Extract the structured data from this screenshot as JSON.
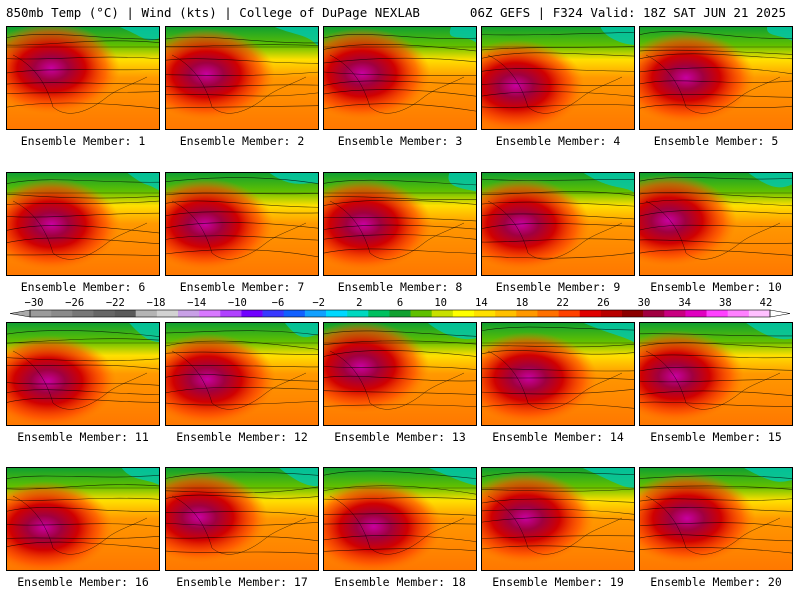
{
  "header": {
    "left": "850mb Temp (°C) | Wind (kts) | College of DuPage NEXLAB",
    "right": "06Z GEFS | F324 Valid: 18Z SAT JUN 21 2025"
  },
  "member_caption_prefix": "Ensemble Member:",
  "members": [
    {
      "number": 1
    },
    {
      "number": 2
    },
    {
      "number": 3
    },
    {
      "number": 4
    },
    {
      "number": 5
    },
    {
      "number": 6
    },
    {
      "number": 7
    },
    {
      "number": 8
    },
    {
      "number": 9
    },
    {
      "number": 10
    },
    {
      "number": 11
    },
    {
      "number": 12
    },
    {
      "number": 13
    },
    {
      "number": 14
    },
    {
      "number": 15
    },
    {
      "number": 16
    },
    {
      "number": 17
    },
    {
      "number": 18
    },
    {
      "number": 19
    },
    {
      "number": 20
    }
  ],
  "colorbar": {
    "tick_labels": [
      "−30",
      "−26",
      "−22",
      "−18",
      "−14",
      "−10",
      "−6",
      "−2",
      "2",
      "6",
      "10",
      "14",
      "18",
      "22",
      "26",
      "30",
      "34",
      "38",
      "42"
    ],
    "colors": [
      "#9a9a9a",
      "#8a8a8a",
      "#777777",
      "#666666",
      "#5a5a5a",
      "#b4b4b4",
      "#d2d2d2",
      "#c8a0e6",
      "#d878ff",
      "#b040ff",
      "#7000ff",
      "#3838ff",
      "#1060ff",
      "#10a0ff",
      "#00d8ff",
      "#00d8c0",
      "#00c060",
      "#10a030",
      "#60c000",
      "#c8e000",
      "#ffff00",
      "#ffe000",
      "#ffc000",
      "#ff9800",
      "#ff7000",
      "#ff4000",
      "#e00000",
      "#b80000",
      "#8c0000",
      "#a00040",
      "#c80080",
      "#e000c0",
      "#ff40ff",
      "#ff80ff",
      "#ffc0ff"
    ]
  }
}
